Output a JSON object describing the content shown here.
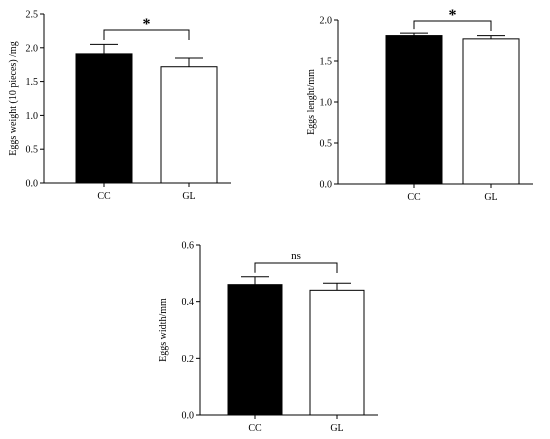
{
  "chart_data": [
    {
      "type": "bar",
      "categories": [
        "CC",
        "GL"
      ],
      "values": [
        1.91,
        1.72
      ],
      "errors": [
        0.14,
        0.13
      ],
      "colors": [
        "#000000",
        "#ffffff"
      ],
      "title": "",
      "xlabel": "",
      "ylabel": "Eggs weight (10 pieces) /mg",
      "ylim": [
        0,
        2.5
      ],
      "yticks": [
        "0.0",
        "0.5",
        "1.0",
        "1.5",
        "2.0",
        "2.5"
      ],
      "significance": "*",
      "grid": false
    },
    {
      "type": "bar",
      "categories": [
        "CC",
        "GL"
      ],
      "values": [
        1.81,
        1.77
      ],
      "errors": [
        0.03,
        0.04
      ],
      "colors": [
        "#000000",
        "#ffffff"
      ],
      "title": "",
      "xlabel": "",
      "ylabel": "Eggs lenght/mm",
      "ylim": [
        0,
        2.0
      ],
      "yticks": [
        "0.0",
        "0.5",
        "1.0",
        "1.5",
        "2.0"
      ],
      "significance": "*",
      "grid": false
    },
    {
      "type": "bar",
      "categories": [
        "CC",
        "GL"
      ],
      "values": [
        0.46,
        0.44
      ],
      "errors": [
        0.028,
        0.025
      ],
      "colors": [
        "#000000",
        "#ffffff"
      ],
      "title": "",
      "xlabel": "",
      "ylabel": "Eggs width/mm",
      "ylim": [
        0,
        0.6
      ],
      "yticks": [
        "0.0",
        "0.2",
        "0.4",
        "0.6"
      ],
      "significance": "ns",
      "grid": false
    }
  ]
}
